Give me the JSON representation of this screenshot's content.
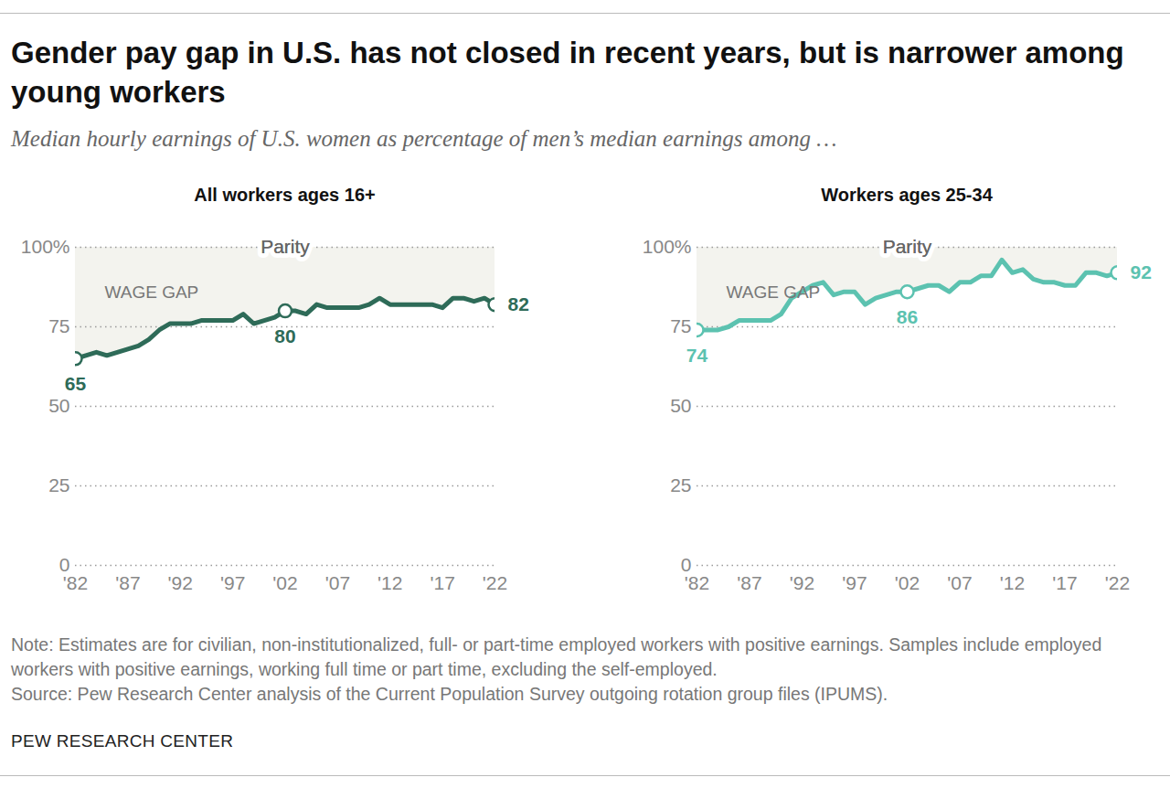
{
  "title": "Gender pay gap in U.S. has not closed in recent years, but is narrower among young workers",
  "subtitle": "Median hourly earnings of U.S. women as percentage of men’s median earnings among …",
  "note": "Note: Estimates are for civilian, non-institutionalized, full- or part-time employed workers with positive earnings. Samples include employed workers with positive earnings, working full time or part time, excluding the self-employed.",
  "source": "Source: Pew Research Center analysis of the Current Population Survey outgoing rotation group files (IPUMS).",
  "credit": "PEW RESEARCH CENTER",
  "chart_data": [
    {
      "type": "line",
      "title": "All workers ages 16+",
      "color": "#2e6b58",
      "x": [
        1982,
        1983,
        1984,
        1985,
        1986,
        1987,
        1988,
        1989,
        1990,
        1991,
        1992,
        1993,
        1994,
        1995,
        1996,
        1997,
        1998,
        1999,
        2000,
        2001,
        2002,
        2003,
        2004,
        2005,
        2006,
        2007,
        2008,
        2009,
        2010,
        2011,
        2012,
        2013,
        2014,
        2015,
        2016,
        2017,
        2018,
        2019,
        2020,
        2021,
        2022
      ],
      "values": [
        65,
        66,
        67,
        66,
        67,
        68,
        69,
        71,
        74,
        76,
        76,
        76,
        77,
        77,
        77,
        77,
        79,
        76,
        77,
        78,
        80,
        80,
        79,
        82,
        81,
        81,
        81,
        81,
        82,
        84,
        82,
        82,
        82,
        82,
        82,
        81,
        84,
        84,
        83,
        84,
        82
      ],
      "value_labels": [
        "65",
        null,
        null,
        null,
        null,
        null,
        null,
        null,
        null,
        null,
        null,
        null,
        null,
        null,
        null,
        null,
        null,
        null,
        null,
        null,
        "80",
        null,
        null,
        null,
        null,
        null,
        null,
        null,
        null,
        null,
        null,
        null,
        null,
        null,
        null,
        null,
        null,
        null,
        null,
        null,
        "82"
      ],
      "xlim": [
        1982,
        2022
      ],
      "xticks": [
        {
          "value": 1982,
          "label": "'82"
        },
        {
          "value": 1987,
          "label": "'87"
        },
        {
          "value": 1992,
          "label": "'92"
        },
        {
          "value": 1997,
          "label": "'97"
        },
        {
          "value": 2002,
          "label": "'02"
        },
        {
          "value": 2007,
          "label": "'07"
        },
        {
          "value": 2012,
          "label": "'12"
        },
        {
          "value": 2017,
          "label": "'17"
        },
        {
          "value": 2022,
          "label": "'22"
        }
      ],
      "ylim": [
        0,
        100
      ],
      "yticks": [
        0,
        25,
        50,
        75,
        {
          "value": 100,
          "label": "100%"
        }
      ],
      "grid": true,
      "annotations": [
        {
          "text": "Parity",
          "value": 100
        },
        {
          "text": "WAGE GAP"
        }
      ]
    },
    {
      "type": "line",
      "title": "Workers ages 25-34",
      "color": "#5cc2b0",
      "x": [
        1982,
        1983,
        1984,
        1985,
        1986,
        1987,
        1988,
        1989,
        1990,
        1991,
        1992,
        1993,
        1994,
        1995,
        1996,
        1997,
        1998,
        1999,
        2000,
        2001,
        2002,
        2003,
        2004,
        2005,
        2006,
        2007,
        2008,
        2009,
        2010,
        2011,
        2012,
        2013,
        2014,
        2015,
        2016,
        2017,
        2018,
        2019,
        2020,
        2021,
        2022
      ],
      "values": [
        74,
        74,
        74,
        75,
        77,
        77,
        77,
        77,
        79,
        84,
        86,
        88,
        89,
        85,
        86,
        86,
        82,
        84,
        85,
        86,
        86,
        87,
        88,
        88,
        86,
        89,
        89,
        91,
        91,
        96,
        92,
        93,
        90,
        89,
        89,
        88,
        88,
        92,
        92,
        91,
        92
      ],
      "value_labels": [
        "74",
        null,
        null,
        null,
        null,
        null,
        null,
        null,
        null,
        null,
        null,
        null,
        null,
        null,
        null,
        null,
        null,
        null,
        null,
        null,
        "86",
        null,
        null,
        null,
        null,
        null,
        null,
        null,
        null,
        null,
        null,
        null,
        null,
        null,
        null,
        null,
        null,
        null,
        null,
        null,
        "92"
      ],
      "xlim": [
        1982,
        2022
      ],
      "xticks": [
        {
          "value": 1982,
          "label": "'82"
        },
        {
          "value": 1987,
          "label": "'87"
        },
        {
          "value": 1992,
          "label": "'92"
        },
        {
          "value": 1997,
          "label": "'97"
        },
        {
          "value": 2002,
          "label": "'02"
        },
        {
          "value": 2007,
          "label": "'07"
        },
        {
          "value": 2012,
          "label": "'12"
        },
        {
          "value": 2017,
          "label": "'17"
        },
        {
          "value": 2022,
          "label": "'22"
        }
      ],
      "ylim": [
        0,
        100
      ],
      "yticks": [
        0,
        25,
        50,
        75,
        {
          "value": 100,
          "label": "100%"
        }
      ],
      "grid": true,
      "annotations": [
        {
          "text": "Parity",
          "value": 100
        },
        {
          "text": "WAGE GAP"
        }
      ]
    }
  ]
}
